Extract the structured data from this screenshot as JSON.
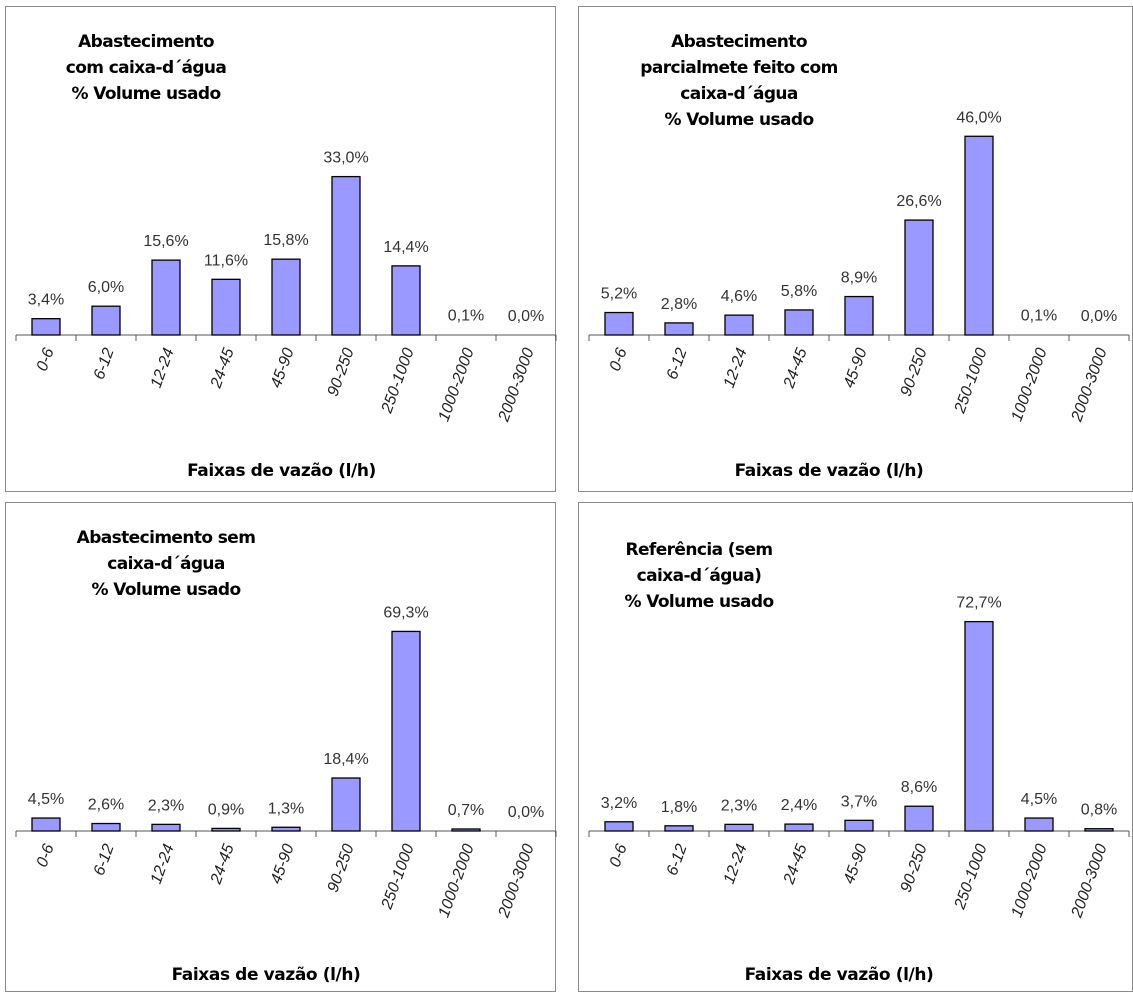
{
  "colors": {
    "bar_fill": "#9999ff",
    "bar_stroke": "#000000",
    "axis": "#555555"
  },
  "chart_data": [
    {
      "type": "bar",
      "title_lines": [
        "Abastecimento",
        "com caixa-d´água",
        "% Volume usado"
      ],
      "xlabel": "Faixas de vazão (l/h)",
      "categories": [
        "0-6",
        "6-12",
        "12-24",
        "24-45",
        "45-90",
        "90-250",
        "250-1000",
        "1000-2000",
        "2000-3000"
      ],
      "values": [
        3.4,
        6.0,
        15.6,
        11.6,
        15.8,
        33.0,
        14.4,
        0.1,
        0.0
      ],
      "value_labels": [
        "3,4%",
        "6,0%",
        "15,6%",
        "11,6%",
        "15,8%",
        "33,0%",
        "14,4%",
        "0,1%",
        "0,0%"
      ]
    },
    {
      "type": "bar",
      "title_lines": [
        "Abastecimento",
        "parcialmete feito com",
        "caixa-d´água",
        "% Volume usado"
      ],
      "xlabel": "Faixas de vazão (l/h)",
      "categories": [
        "0-6",
        "6-12",
        "12-24",
        "24-45",
        "45-90",
        "90-250",
        "250-1000",
        "1000-2000",
        "2000-3000"
      ],
      "values": [
        5.2,
        2.8,
        4.6,
        5.8,
        8.9,
        26.6,
        46.0,
        0.1,
        0.0
      ],
      "value_labels": [
        "5,2%",
        "2,8%",
        "4,6%",
        "5,8%",
        "8,9%",
        "26,6%",
        "46,0%",
        "0,1%",
        "0,0%"
      ]
    },
    {
      "type": "bar",
      "title_lines": [
        "Abastecimento sem",
        "caixa-d´água",
        "% Volume usado"
      ],
      "xlabel": "Faixas de vazão (l/h)",
      "categories": [
        "0-6",
        "6-12",
        "12-24",
        "24-45",
        "45-90",
        "90-250",
        "250-1000",
        "1000-2000",
        "2000-3000"
      ],
      "values": [
        4.5,
        2.6,
        2.3,
        0.9,
        1.3,
        18.4,
        69.3,
        0.7,
        0.0
      ],
      "value_labels": [
        "4,5%",
        "2,6%",
        "2,3%",
        "0,9%",
        "1,3%",
        "18,4%",
        "69,3%",
        "0,7%",
        "0,0%"
      ]
    },
    {
      "type": "bar",
      "title_lines": [
        "Referência (sem",
        "caixa-d´água)",
        "% Volume usado"
      ],
      "xlabel": "Faixas de vazão (l/h)",
      "categories": [
        "0-6",
        "6-12",
        "12-24",
        "24-45",
        "45-90",
        "90-250",
        "250-1000",
        "1000-2000",
        "2000-3000"
      ],
      "values": [
        3.2,
        1.8,
        2.3,
        2.4,
        3.7,
        8.6,
        72.7,
        4.5,
        0.8
      ],
      "value_labels": [
        "3,2%",
        "1,8%",
        "2,3%",
        "2,4%",
        "3,7%",
        "8,6%",
        "72,7%",
        "4,5%",
        "0,8%"
      ]
    }
  ]
}
